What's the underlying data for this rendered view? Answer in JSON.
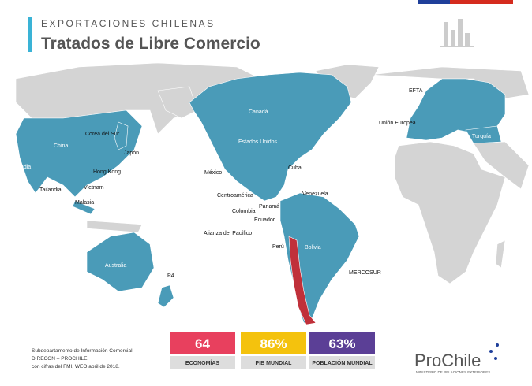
{
  "header": {
    "kicker": "EXPORTACIONES CHILENAS",
    "title": "Tratados de Libre Comercio"
  },
  "map": {
    "labels": [
      "EFTA",
      "Unión Europea",
      "Turquía",
      "Canadá",
      "Estados Unidos",
      "China",
      "Corea del Sur",
      "Japón",
      "India",
      "Hong Kong",
      "Vietnam",
      "Tailandia",
      "Malasia",
      "México",
      "Cuba",
      "Centroamérica",
      "Panamá",
      "Venezuela",
      "Colombia",
      "Ecuador",
      "Alianza del Pacífico",
      "Perú",
      "Bolivia",
      "MERCOSUR",
      "Australia",
      "P4"
    ]
  },
  "stats": [
    {
      "value": "64",
      "label": "ECONOMÍAS"
    },
    {
      "value": "86%",
      "label": "PIB MUNDIAL"
    },
    {
      "value": "63%",
      "label": "POBLACIÓN MUNDIAL"
    }
  ],
  "source": [
    "Subdepartamento de Información Comercial,",
    "DIRECON – PROCHILE,",
    "con cifras del FMI, WEO abril de 2018."
  ],
  "logo": {
    "name": "ProChile",
    "subtitle": "MINISTERIO DE RELACIONES EXTERIORES"
  }
}
